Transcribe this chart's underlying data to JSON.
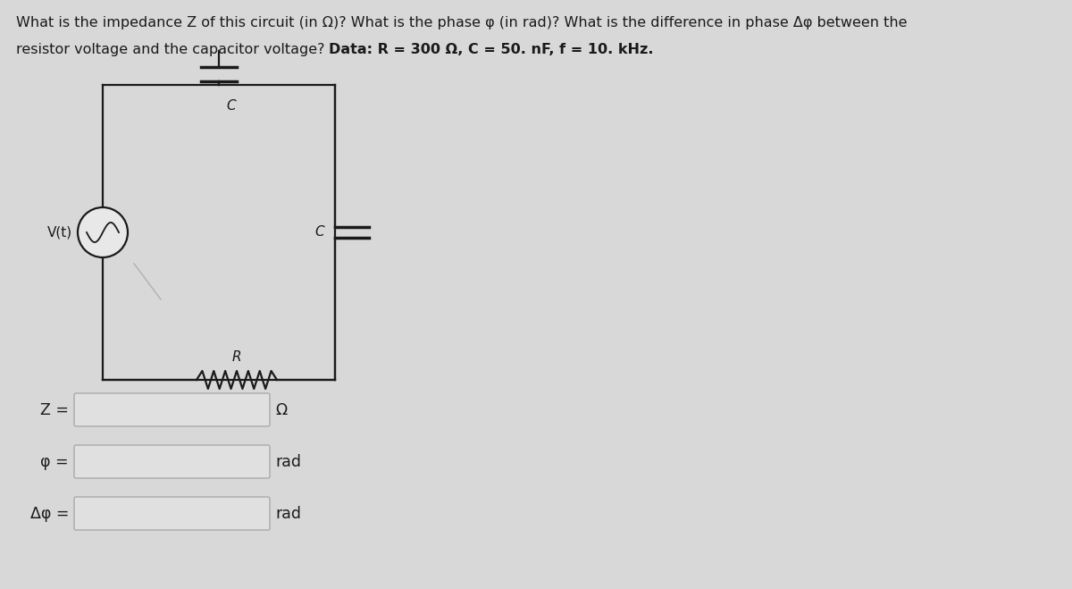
{
  "bg_color": "#d8d8d8",
  "title_line1": "What is the impedance Z of this circuit (in Ω)? What is the phase φ (in rad)? What is the difference in phase Δφ between the",
  "title_line2_normal": "resistor voltage and the capacitor voltage? ",
  "title_line2_bold": "Data: R = 300 Ω, C = 50. nF, f = 10. kHz.",
  "label_Z": "Z =",
  "label_phi": "φ =",
  "label_dphi": "Δφ =",
  "unit_Z": "Ω",
  "unit_phi": "rad",
  "unit_dphi": "rad",
  "circuit_label_C_top": "C",
  "circuit_label_C_right": "C",
  "circuit_label_R": "R",
  "circuit_label_Vt": "V(t)",
  "box_facecolor": "#e0e0e0",
  "box_edgecolor": "#aaaaaa",
  "line_color": "#1a1a1a",
  "text_color": "#1a1a1a",
  "scratch_color": "#b0b0b0"
}
